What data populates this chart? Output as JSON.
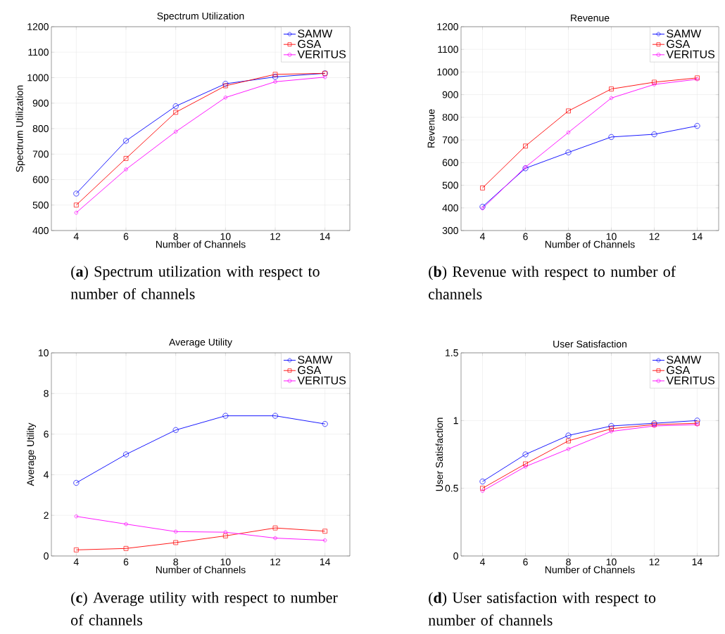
{
  "chart_data": [
    {
      "type": "line",
      "title": "Spectrum Utilization",
      "xlabel": "Number of Channels",
      "ylabel": "Spectrum Utilization",
      "x": [
        4,
        6,
        8,
        10,
        12,
        14
      ],
      "xlim": [
        3,
        15
      ],
      "xticks": [
        4,
        6,
        8,
        10,
        12,
        14
      ],
      "ylim": [
        400,
        1200
      ],
      "yticks": [
        400,
        500,
        600,
        700,
        800,
        900,
        1000,
        1100,
        1200
      ],
      "grid": true,
      "legend": "top right",
      "series": [
        {
          "name": "SAMW",
          "color": "#0000ff",
          "marker": "circle",
          "values": [
            545,
            752,
            888,
            976,
            1003,
            1017
          ]
        },
        {
          "name": "GSA",
          "color": "#ff0000",
          "marker": "square",
          "values": [
            500,
            683,
            864,
            968,
            1013,
            1017
          ]
        },
        {
          "name": "VERITUS",
          "color": "#ff00ff",
          "marker": "circle",
          "values": [
            470,
            640,
            788,
            922,
            984,
            1002
          ]
        }
      ],
      "annotations": [
        "(**a**) Spectrum utilization with respect to number of channels"
      ]
    },
    {
      "type": "line",
      "title": "Revenue",
      "xlabel": "Number of Channels",
      "ylabel": "Revenue",
      "x": [
        4,
        6,
        8,
        10,
        12,
        14
      ],
      "xlim": [
        3,
        15
      ],
      "xticks": [
        4,
        6,
        8,
        10,
        12,
        14
      ],
      "ylim": [
        300,
        1200
      ],
      "yticks": [
        300,
        400,
        500,
        600,
        700,
        800,
        900,
        1000,
        1100,
        1200
      ],
      "grid": true,
      "legend": "top right",
      "series": [
        {
          "name": "SAMW",
          "color": "#0000ff",
          "marker": "circle",
          "values": [
            405,
            575,
            645,
            713,
            725,
            762
          ]
        },
        {
          "name": "GSA",
          "color": "#ff0000",
          "marker": "square",
          "values": [
            488,
            673,
            828,
            925,
            955,
            974
          ]
        },
        {
          "name": "VERITUS",
          "color": "#ff00ff",
          "marker": "circle",
          "values": [
            398,
            580,
            733,
            885,
            945,
            968
          ]
        }
      ],
      "annotations": [
        "(**b**) Revenue with respect to number of channels"
      ]
    },
    {
      "type": "line",
      "title": "Average Utility",
      "xlabel": "Number of Channels",
      "ylabel": "Average Utility",
      "x": [
        4,
        6,
        8,
        10,
        12,
        14
      ],
      "xlim": [
        3,
        15
      ],
      "xticks": [
        4,
        6,
        8,
        10,
        12,
        14
      ],
      "ylim": [
        0,
        10
      ],
      "yticks": [
        0,
        2,
        4,
        6,
        8,
        10
      ],
      "grid": true,
      "legend": "top right",
      "series": [
        {
          "name": "SAMW",
          "color": "#0000ff",
          "marker": "circle",
          "values": [
            3.6,
            5.0,
            6.2,
            6.9,
            6.9,
            6.5
          ]
        },
        {
          "name": "GSA",
          "color": "#ff0000",
          "marker": "square",
          "values": [
            0.3,
            0.37,
            0.66,
            0.99,
            1.38,
            1.22
          ]
        },
        {
          "name": "VERITUS",
          "color": "#ff00ff",
          "marker": "circle",
          "values": [
            1.95,
            1.57,
            1.2,
            1.17,
            0.88,
            0.77
          ]
        }
      ],
      "annotations": [
        "(**c**) Average utility with respect to number of channels"
      ]
    },
    {
      "type": "line",
      "title": "User Satisfaction",
      "xlabel": "Number of Channels",
      "ylabel": "User Satisfaction",
      "x": [
        4,
        6,
        8,
        10,
        12,
        14
      ],
      "xlim": [
        3,
        15
      ],
      "xticks": [
        4,
        6,
        8,
        10,
        12,
        14
      ],
      "ylim": [
        0,
        1.5
      ],
      "yticks": [
        0,
        0.5,
        1,
        1.5
      ],
      "grid": true,
      "legend": "top right",
      "series": [
        {
          "name": "SAMW",
          "color": "#0000ff",
          "marker": "circle",
          "values": [
            0.55,
            0.75,
            0.89,
            0.96,
            0.98,
            1.0
          ]
        },
        {
          "name": "GSA",
          "color": "#ff0000",
          "marker": "square",
          "values": [
            0.5,
            0.68,
            0.85,
            0.94,
            0.97,
            0.98
          ]
        },
        {
          "name": "VERITUS",
          "color": "#ff00ff",
          "marker": "circle",
          "values": [
            0.48,
            0.66,
            0.79,
            0.92,
            0.96,
            0.97
          ]
        }
      ],
      "annotations": [
        "(**d**) User satisfaction with respect to number of channels"
      ]
    }
  ]
}
